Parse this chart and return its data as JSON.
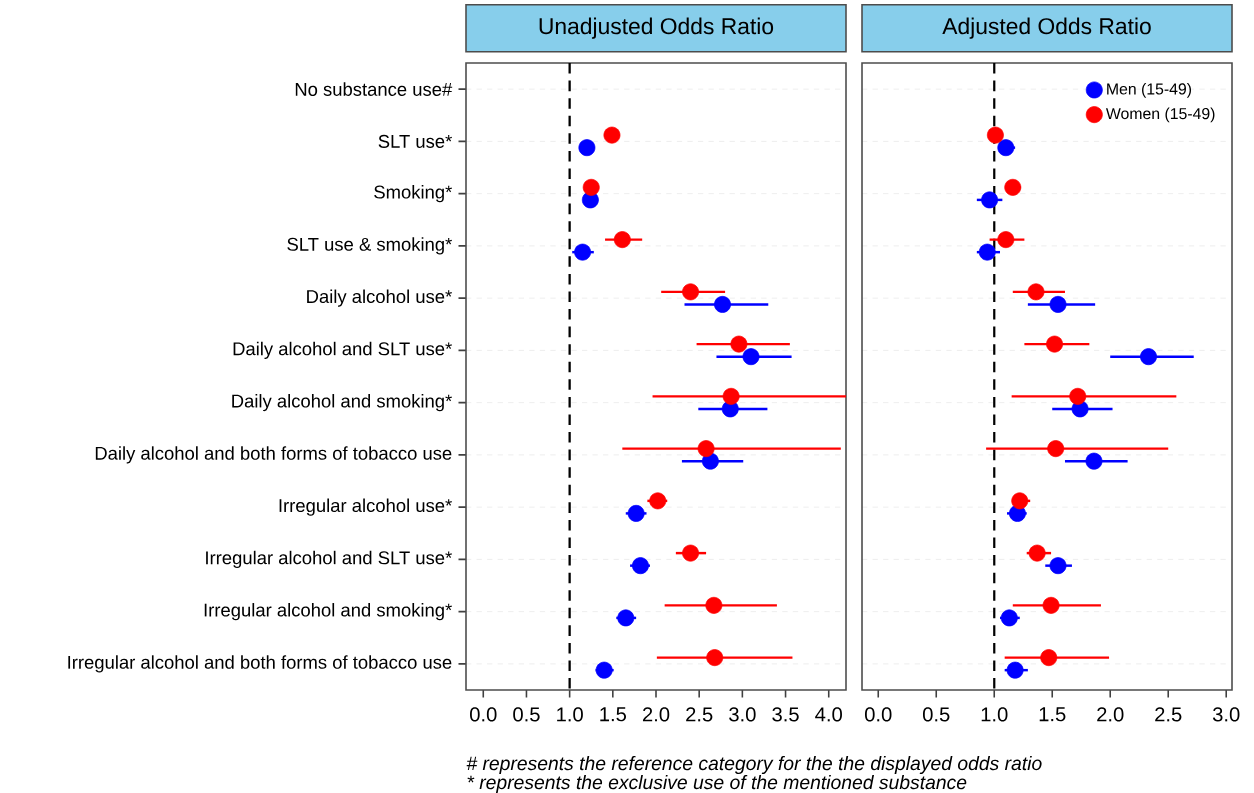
{
  "chart_data": [
    {
      "type": "scatter",
      "orientation": "horizontal",
      "title": "Unadjusted Odds Ratio",
      "categories": [
        "No substance use#",
        "SLT use*",
        "Smoking*",
        "SLT use & smoking*",
        "Daily alcohol use*",
        "Daily alcohol and SLT use*",
        "Daily alcohol and smoking*",
        "Daily alcohol and both forms of tobacco use",
        "Irregular alcohol use*",
        "Irregular alcohol and SLT use*",
        "Irregular alcohol and smoking*",
        "Irregular alcohol and both forms of tobacco use"
      ],
      "series": [
        {
          "color": "#0000ff",
          "values": [
            null,
            1.2,
            1.24,
            1.15,
            2.77,
            3.1,
            2.86,
            2.63,
            1.77,
            1.82,
            1.65,
            1.4
          ],
          "errors": [
            null,
            null,
            [
              1.16,
              1.33
            ],
            [
              1.03,
              1.28
            ],
            [
              2.33,
              3.3
            ],
            [
              2.7,
              3.57
            ],
            [
              2.49,
              3.29
            ],
            [
              2.3,
              3.01
            ],
            [
              1.65,
              1.89
            ],
            [
              1.7,
              1.93
            ],
            [
              1.54,
              1.77
            ],
            [
              1.3,
              1.51
            ]
          ]
        },
        {
          "color": "#ff0000",
          "values": [
            null,
            1.49,
            1.25,
            1.61,
            2.4,
            2.96,
            2.87,
            2.58,
            2.02,
            2.4,
            2.67,
            2.68
          ],
          "errors": [
            null,
            [
              1.44,
              1.56
            ],
            null,
            [
              1.41,
              1.84
            ],
            [
              2.06,
              2.8
            ],
            [
              2.47,
              3.55
            ],
            [
              1.96,
              4.2
            ],
            [
              1.61,
              4.14
            ],
            [
              1.9,
              2.13
            ],
            [
              2.23,
              2.58
            ],
            [
              2.1,
              3.4
            ],
            [
              2.01,
              3.58
            ]
          ]
        }
      ],
      "xlim": [
        -0.2,
        4.2
      ],
      "xticks": [
        {
          "value": 0,
          "label": "0.0"
        },
        0.5,
        {
          "value": 1,
          "label": "1.0"
        },
        1.5,
        {
          "value": 2,
          "label": "2.0"
        },
        2.5,
        {
          "value": 3,
          "label": "3.0"
        },
        3.5,
        {
          "value": 4,
          "label": "4.0"
        }
      ],
      "ref_lines": [
        {
          "axis": "x",
          "value": 1,
          "color": "#000000",
          "line_style": "dashed"
        }
      ],
      "grid": "y",
      "legend": false,
      "annotations": [
        "# represents the reference category for the the displayed odds ratio",
        "* represents the exclusive use of the mentioned substance"
      ]
    },
    {
      "type": "scatter",
      "orientation": "horizontal",
      "title": "Adjusted Odds Ratio",
      "categories": [
        null,
        null,
        null,
        null,
        null,
        null,
        null,
        null,
        null,
        null,
        null,
        null
      ],
      "series": [
        {
          "name": "Men (15-49)",
          "color": "#0000ff",
          "values": [
            null,
            1.1,
            0.96,
            0.94,
            1.55,
            2.33,
            1.74,
            1.86,
            1.2,
            1.55,
            1.13,
            1.18
          ],
          "errors": [
            null,
            [
              1.05,
              1.18
            ],
            [
              0.85,
              1.07
            ],
            [
              0.85,
              1.05
            ],
            [
              1.29,
              1.87
            ],
            [
              2.0,
              2.72
            ],
            [
              1.5,
              2.02
            ],
            [
              1.61,
              2.15
            ],
            [
              1.11,
              1.28
            ],
            [
              1.44,
              1.67
            ],
            [
              1.05,
              1.22
            ],
            [
              1.09,
              1.29
            ]
          ]
        },
        {
          "name": "Women (15-49)",
          "color": "#ff0000",
          "values": [
            null,
            1.01,
            1.16,
            1.1,
            1.36,
            1.52,
            1.72,
            1.53,
            1.22,
            1.37,
            1.49,
            1.47
          ],
          "errors": [
            null,
            null,
            [
              1.11,
              1.23
            ],
            [
              0.96,
              1.26
            ],
            [
              1.16,
              1.61
            ],
            [
              1.26,
              1.82
            ],
            [
              1.15,
              2.57
            ],
            [
              0.93,
              2.5
            ],
            [
              1.16,
              1.31
            ],
            [
              1.28,
              1.49
            ],
            [
              1.16,
              1.92
            ],
            [
              1.09,
              1.99
            ]
          ]
        }
      ],
      "xlim": [
        -0.14,
        3.05
      ],
      "xticks": [
        {
          "value": 0,
          "label": "0.0"
        },
        0.5,
        {
          "value": 1,
          "label": "1.0"
        },
        1.5,
        {
          "value": 2,
          "label": "2.0"
        },
        2.5,
        {
          "value": 3,
          "label": "3.0"
        }
      ],
      "ref_lines": [
        {
          "axis": "x",
          "value": 1,
          "color": "#000000",
          "line_style": "dashed"
        }
      ],
      "grid": "y",
      "legend": "top right",
      "tick_labels": "x"
    }
  ]
}
